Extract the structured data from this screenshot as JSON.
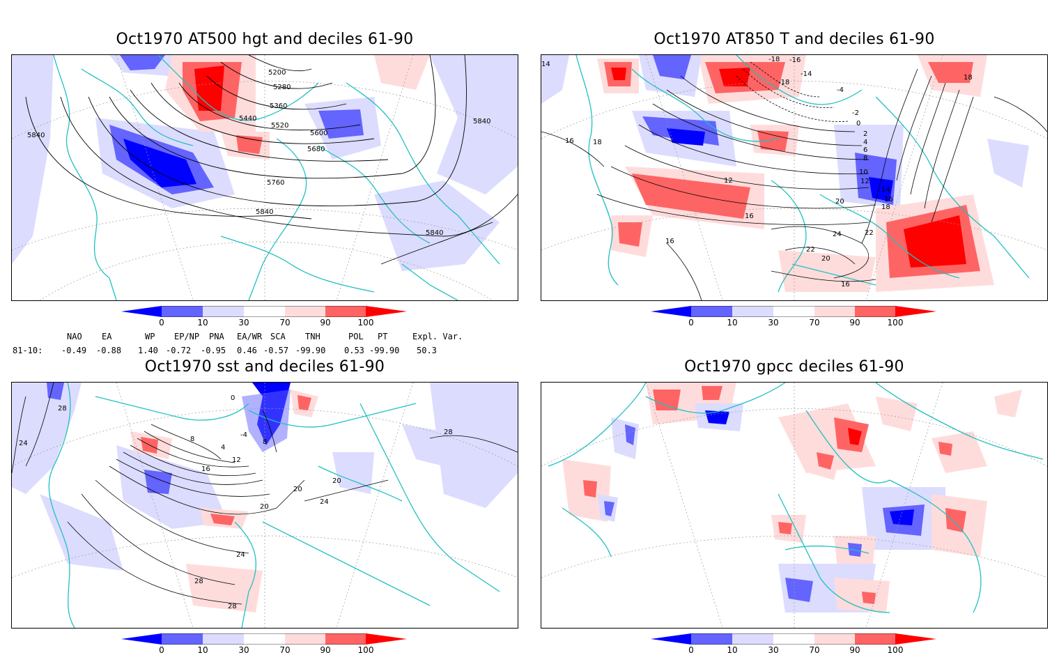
{
  "colorbar": {
    "ticks": [
      "0",
      "10",
      "30",
      "70",
      "90",
      "100"
    ],
    "colors": {
      "deep_blue": "#0000ff",
      "mid_blue": "#6464ff",
      "light_blue": "#dcdcff",
      "white": "#ffffff",
      "light_red": "#ffdcdc",
      "mid_red": "#ff6464",
      "deep_red": "#ff0000"
    }
  },
  "map_colors": {
    "coast": "#20c0c0",
    "contour": "#000000",
    "grid": "#999999"
  },
  "panels": [
    {
      "title": "Oct1970 AT500 hgt and deciles 61-90",
      "contour_labels": [
        "5200",
        "5280",
        "5360",
        "5440",
        "5520",
        "5600",
        "5680",
        "5760",
        "5840",
        "5840",
        "5840",
        "5840"
      ]
    },
    {
      "title": "Oct1970 AT850 T and deciles 61-90",
      "contour_labels": [
        "-18",
        "-16",
        "-14",
        "-18",
        "-4",
        "-2",
        "0",
        "2",
        "4",
        "6",
        "8",
        "10",
        "12",
        "12",
        "14",
        "16",
        "16",
        "16",
        "18",
        "18",
        "20",
        "20",
        "22",
        "22",
        "24",
        "16",
        "16",
        "18",
        "14"
      ]
    },
    {
      "title": "Oct1970 sst and deciles 61-90",
      "contour_labels": [
        "28",
        "24",
        "0",
        "4",
        "8",
        "12",
        "16",
        "20",
        "20",
        "24",
        "24",
        "28",
        "28",
        "28",
        "-4",
        "8",
        "20"
      ]
    },
    {
      "title": "Oct1970 gpcc deciles 61-90",
      "contour_labels": []
    }
  ],
  "indices": {
    "headers": [
      "NAO",
      "EA",
      "WP",
      "EP/NP",
      "PNA",
      "EA/WR",
      "SCA",
      "TNH",
      "POL",
      "PT",
      "Expl. Var."
    ],
    "row_label": "81-10:",
    "values": [
      "-0.49",
      "-0.88",
      "1.40",
      "-0.72",
      "-0.95",
      "0.46",
      "-0.57",
      "-99.90",
      "0.53",
      "-99.90",
      "50.3"
    ]
  }
}
